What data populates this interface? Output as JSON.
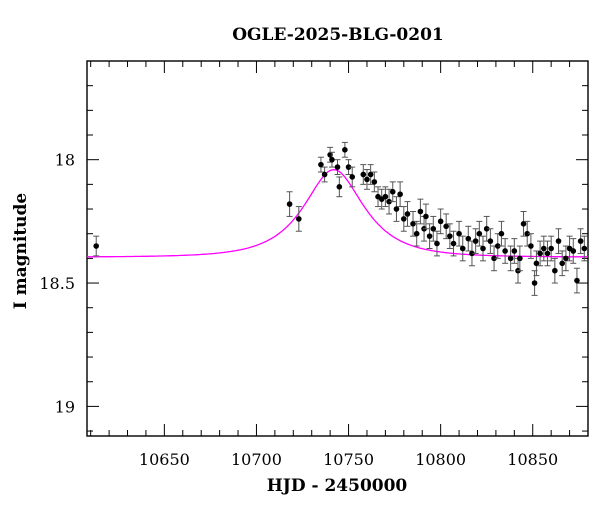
{
  "chart_data": {
    "type": "scatter",
    "title": "OGLE-2025-BLG-0201",
    "xlabel": "HJD - 2450000",
    "ylabel": "I magnitude",
    "xlim": [
      10608,
      10880
    ],
    "ylim": [
      19.12,
      17.6
    ],
    "y_inverted": true,
    "x_ticks": [
      10650,
      10700,
      10750,
      10800,
      10850
    ],
    "y_ticks": [
      18,
      18.5,
      19
    ],
    "x_tick_labels": [
      "10650",
      "10700",
      "10750",
      "10800",
      "10850"
    ],
    "y_tick_labels": [
      "18",
      "18.5",
      "19"
    ],
    "colors": {
      "points": "#000000",
      "errorbars": "#555555",
      "model": "#ff00ff"
    },
    "points": [
      [
        10613,
        18.35,
        0.04
      ],
      [
        10718,
        18.18,
        0.05
      ],
      [
        10723,
        18.24,
        0.05
      ],
      [
        10735,
        18.02,
        0.03
      ],
      [
        10737,
        18.06,
        0.03
      ],
      [
        10740,
        17.98,
        0.03
      ],
      [
        10741,
        18.0,
        0.03
      ],
      [
        10744,
        18.03,
        0.03
      ],
      [
        10745,
        18.11,
        0.04
      ],
      [
        10748,
        17.96,
        0.03
      ],
      [
        10750,
        18.03,
        0.03
      ],
      [
        10752,
        18.07,
        0.04
      ],
      [
        10758,
        18.06,
        0.04
      ],
      [
        10760,
        18.08,
        0.04
      ],
      [
        10762,
        18.06,
        0.04
      ],
      [
        10764,
        18.09,
        0.04
      ],
      [
        10766,
        18.15,
        0.04
      ],
      [
        10768,
        18.16,
        0.04
      ],
      [
        10770,
        18.15,
        0.04
      ],
      [
        10772,
        18.17,
        0.05
      ],
      [
        10774,
        18.13,
        0.04
      ],
      [
        10776,
        18.2,
        0.05
      ],
      [
        10778,
        18.14,
        0.05
      ],
      [
        10780,
        18.24,
        0.05
      ],
      [
        10782,
        18.22,
        0.05
      ],
      [
        10785,
        18.26,
        0.05
      ],
      [
        10787,
        18.3,
        0.05
      ],
      [
        10789,
        18.21,
        0.05
      ],
      [
        10791,
        18.28,
        0.05
      ],
      [
        10792,
        18.23,
        0.05
      ],
      [
        10794,
        18.31,
        0.05
      ],
      [
        10796,
        18.28,
        0.05
      ],
      [
        10798,
        18.34,
        0.05
      ],
      [
        10800,
        18.25,
        0.05
      ],
      [
        10803,
        18.27,
        0.05
      ],
      [
        10805,
        18.31,
        0.05
      ],
      [
        10807,
        18.34,
        0.05
      ],
      [
        10810,
        18.3,
        0.05
      ],
      [
        10812,
        18.36,
        0.05
      ],
      [
        10815,
        18.32,
        0.05
      ],
      [
        10817,
        18.38,
        0.05
      ],
      [
        10819,
        18.33,
        0.05
      ],
      [
        10821,
        18.3,
        0.05
      ],
      [
        10823,
        18.36,
        0.05
      ],
      [
        10825,
        18.28,
        0.05
      ],
      [
        10827,
        18.33,
        0.05
      ],
      [
        10829,
        18.4,
        0.05
      ],
      [
        10831,
        18.35,
        0.05
      ],
      [
        10833,
        18.3,
        0.05
      ],
      [
        10835,
        18.37,
        0.05
      ],
      [
        10838,
        18.4,
        0.05
      ],
      [
        10840,
        18.37,
        0.05
      ],
      [
        10842,
        18.45,
        0.05
      ],
      [
        10843,
        18.4,
        0.05
      ],
      [
        10845,
        18.26,
        0.05
      ],
      [
        10847,
        18.3,
        0.05
      ],
      [
        10849,
        18.35,
        0.05
      ],
      [
        10851,
        18.5,
        0.05
      ],
      [
        10852,
        18.42,
        0.05
      ],
      [
        10854,
        18.38,
        0.05
      ],
      [
        10856,
        18.36,
        0.05
      ],
      [
        10858,
        18.38,
        0.05
      ],
      [
        10860,
        18.36,
        0.05
      ],
      [
        10862,
        18.45,
        0.05
      ],
      [
        10864,
        18.33,
        0.05
      ],
      [
        10866,
        18.42,
        0.05
      ],
      [
        10868,
        18.4,
        0.05
      ],
      [
        10870,
        18.36,
        0.05
      ],
      [
        10872,
        18.37,
        0.05
      ],
      [
        10874,
        18.49,
        0.05
      ],
      [
        10876,
        18.33,
        0.05
      ],
      [
        10878,
        18.36,
        0.05
      ]
    ],
    "model": {
      "t0": 10742,
      "tE": 26,
      "u0": 0.65,
      "fs": 0.5,
      "baseline_mag": 18.395
    }
  }
}
